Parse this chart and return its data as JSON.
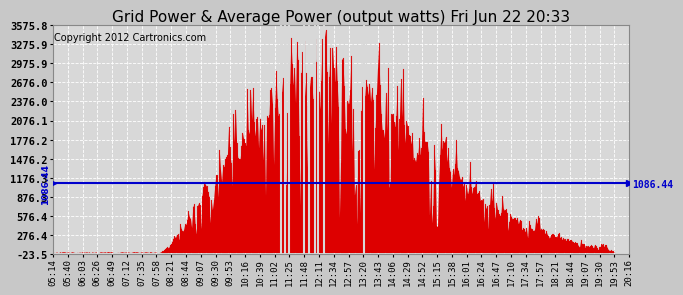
{
  "title": "Grid Power & Average Power (output watts) Fri Jun 22 20:33",
  "copyright": "Copyright 2012 Cartronics.com",
  "avg_line_value": 1086.44,
  "avg_label": "1086.44",
  "y_ticks": [
    -23.5,
    276.4,
    576.4,
    876.3,
    1176.3,
    1476.2,
    1776.2,
    2076.1,
    2376.0,
    2676.0,
    2975.9,
    3275.9,
    3575.8
  ],
  "ylim": [
    -23.5,
    3575.8
  ],
  "x_labels": [
    "05:14",
    "05:40",
    "06:03",
    "06:26",
    "06:49",
    "07:12",
    "07:35",
    "07:58",
    "08:21",
    "08:44",
    "09:07",
    "09:30",
    "09:53",
    "10:16",
    "10:39",
    "11:02",
    "11:25",
    "11:48",
    "12:11",
    "12:34",
    "12:57",
    "13:20",
    "13:43",
    "14:06",
    "14:29",
    "14:52",
    "15:15",
    "15:38",
    "16:01",
    "16:24",
    "16:47",
    "17:10",
    "17:34",
    "17:57",
    "18:21",
    "18:44",
    "19:07",
    "19:30",
    "19:53",
    "20:16"
  ],
  "bar_color": "#dd0000",
  "fill_color": "#dd0000",
  "line_color": "#0000cc",
  "bg_color": "#c8c8c8",
  "plot_bg_color": "#d8d8d8",
  "grid_color": "#ffffff",
  "title_color": "#000000",
  "title_fontsize": 11,
  "copyright_fontsize": 7,
  "n_points": 500,
  "seed": 12
}
